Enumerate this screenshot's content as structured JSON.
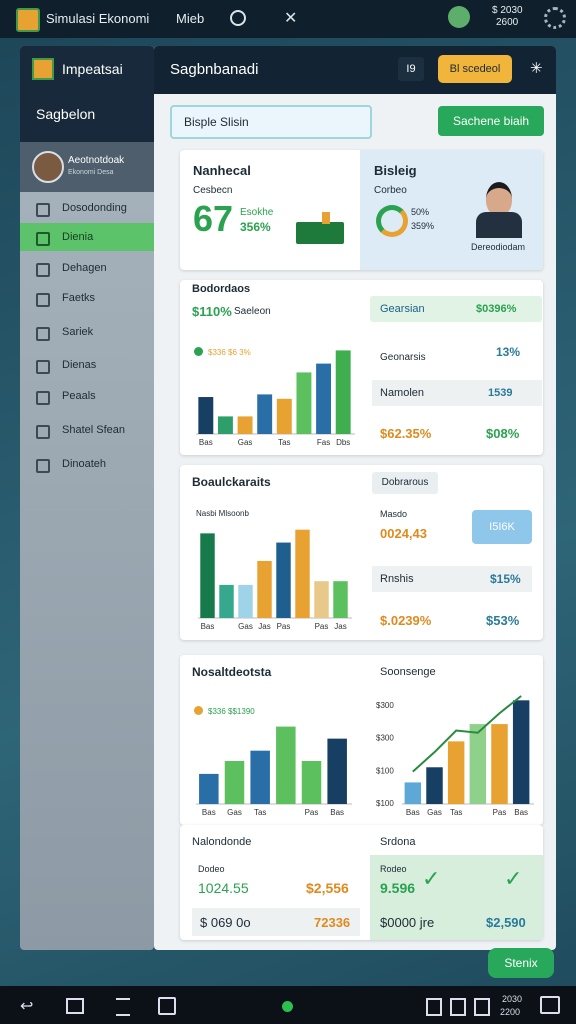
{
  "top_bar": {
    "app_title": "Simulasi Ekonomi",
    "menu": "Mieb",
    "balance": "$ 2030",
    "balance_sub": "2600"
  },
  "sidebar": {
    "brand": "Impeatsai",
    "section": "Sagbelon",
    "profile": {
      "name": "Aeotnotdoak",
      "subtitle": "Ekonomi Desa"
    },
    "menu": [
      "Dosodonding",
      "Dienia",
      "Dehagen",
      "Faetks",
      "Sariek",
      "Dienas",
      "Peaals",
      "Shatel Sfean",
      "Dinoateh"
    ],
    "active_menu": 1
  },
  "header": {
    "title": "Sagbnbanadi",
    "tag": "I9",
    "primary_button": "Bl scedeol"
  },
  "search": {
    "placeholder": "Bisple Slisin",
    "button": "Sachene biaih"
  },
  "summary": {
    "left": {
      "title": "Nanhecal",
      "label": "Cesbecn",
      "big": "67",
      "line1": "Esokhe",
      "line2": "356%"
    },
    "right": {
      "title": "Bisleig",
      "label": "Corbeo",
      "line1": "50%",
      "line2": "359%",
      "person": "Dereodiodam"
    }
  },
  "section1": {
    "title": "Bodordaos",
    "subtitle": "$110%",
    "subtitle2": "Saeleon",
    "legend": "$336 $6 3%",
    "chart": {
      "type": "bar",
      "categories": [
        "Bas",
        null,
        "Gas",
        null,
        "Tas",
        null,
        "Fas",
        "Dbs"
      ],
      "values": [
        42,
        20,
        20,
        45,
        40,
        70,
        80,
        95
      ],
      "colors": [
        "#173e63",
        "#2e9e6a",
        "#e7a232",
        "#2a6ea8",
        "#e7a232",
        "#5cc05f",
        "#2a6ea8",
        "#3fae4f"
      ],
      "ylim": [
        0,
        100
      ]
    },
    "badge": "Gearsian",
    "badge_value": "$0396%",
    "row1_label": "Geonarsis",
    "row1_value": "13%",
    "row2_label": "Namolen",
    "row2_value": "1539",
    "foot_left": "$62.35%",
    "foot_right": "$08%"
  },
  "section2": {
    "title": "Boaulckaraits",
    "tag": "Dobrarous",
    "legend": "Nasbi Mlsoonb",
    "chart": {
      "type": "bar",
      "categories": [
        "Bas",
        null,
        "Gas",
        "Jas",
        "Pas",
        null,
        "Pas",
        "Jas"
      ],
      "values": [
        92,
        36,
        36,
        62,
        82,
        96,
        40,
        40
      ],
      "colors": [
        "#177a4a",
        "#36a88e",
        "#9fd3e8",
        "#e7a232",
        "#1f5f8f",
        "#e7a232",
        "#e8c98a",
        "#5cc05f"
      ],
      "ylim": [
        0,
        100
      ]
    },
    "row1_label": "Masdo",
    "row1_value": "0024,43",
    "badge": "I5I6K",
    "row2_label": "Rnshis",
    "row2_value": "$15%",
    "foot_left": "$.0239%",
    "foot_right": "$53%"
  },
  "section3": {
    "title": "Nosaltdeotsta",
    "legend": "$336 $$1390",
    "chart": {
      "type": "bar",
      "categories": [
        "Bas",
        "Gas",
        "Tas",
        null,
        "Pas",
        "Bas"
      ],
      "values": [
        35,
        50,
        62,
        90,
        50,
        76
      ],
      "colors": [
        "#2a6ea8",
        "#5cc05f",
        "#2a6ea8",
        "#5cc05f",
        "#5cc05f",
        "#173e63"
      ],
      "ylim": [
        0,
        100
      ]
    },
    "side_title": "Soonsenge",
    "line_chart": {
      "type": "combo",
      "categories": [
        "Bas",
        "Gas",
        "Tas",
        null,
        "Pas",
        "Bas"
      ],
      "values": [
        20,
        34,
        58,
        74,
        74,
        96
      ],
      "colors": [
        "#5ea8d8",
        "#173e63",
        "#e7a232",
        "#8fd08a",
        "#e7a232",
        "#173e63"
      ],
      "line": [
        30,
        48,
        68,
        66,
        84,
        100
      ],
      "line_color": "#2a8a3e",
      "axis_labels": [
        "$300",
        "$300",
        "$100",
        "$100"
      ],
      "ylim": [
        0,
        100
      ]
    }
  },
  "bottom": {
    "left": {
      "title": "Nalondonde",
      "label": "Dodeo",
      "v1": "1024.55",
      "v2": "$2,556",
      "v3": "$ 069 0o",
      "v4": "72336"
    },
    "right": {
      "title": "Srdona",
      "label": "Rodeo",
      "v1": "9.596",
      "v2": "$0000 jre",
      "v3": "$2,590"
    }
  },
  "fab": "Stenix",
  "bottom_bar": {
    "l1": "2030",
    "l2": "2200"
  }
}
